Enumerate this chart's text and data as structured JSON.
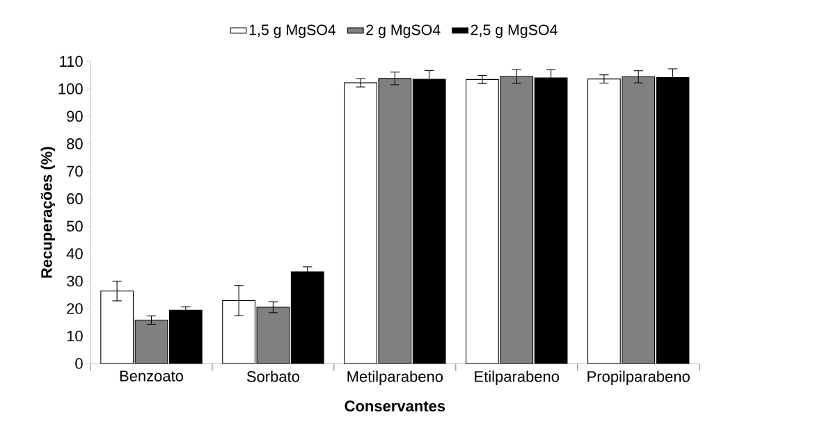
{
  "chart_data": {
    "type": "bar",
    "xlabel": "Conservantes",
    "ylabel": "Recuperações (%)",
    "categories": [
      "Benzoato",
      "Sorbato",
      "Metilparabeno",
      "Etilparabeno",
      "Propilparabeno"
    ],
    "series": [
      {
        "name": "1,5 g MgSO4",
        "color": "#ffffff",
        "values": [
          26.4,
          22.9,
          102.2,
          103.4,
          103.6
        ],
        "errors": [
          3.6,
          5.5,
          1.5,
          1.5,
          1.5
        ]
      },
      {
        "name": "2 g MgSO4",
        "color": "#808080",
        "values": [
          15.8,
          20.5,
          103.8,
          104.5,
          104.4
        ],
        "errors": [
          1.5,
          2.0,
          2.3,
          2.5,
          2.2
        ]
      },
      {
        "name": "2,5 g MgSO4",
        "color": "#000000",
        "values": [
          19.4,
          33.4,
          103.5,
          104.0,
          104.1
        ],
        "errors": [
          1.2,
          1.8,
          3.2,
          3.0,
          3.2
        ]
      }
    ],
    "ylim": [
      0,
      110
    ],
    "yticks": [
      0,
      10,
      20,
      30,
      40,
      50,
      60,
      70,
      80,
      90,
      100,
      110
    ],
    "grid": false,
    "legend": "top"
  }
}
